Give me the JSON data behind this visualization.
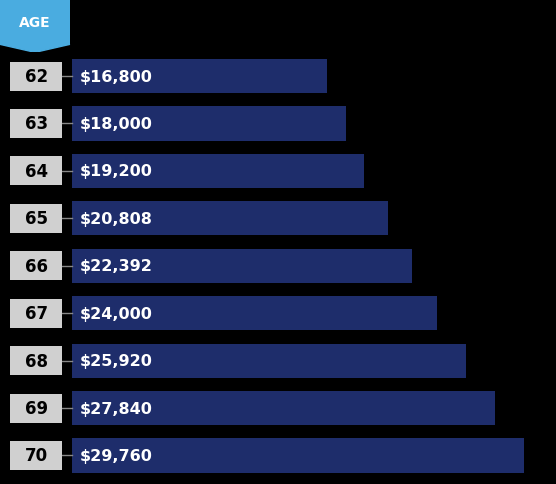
{
  "ages": [
    62,
    63,
    64,
    65,
    66,
    67,
    68,
    69,
    70
  ],
  "values": [
    16800,
    18000,
    19200,
    20808,
    22392,
    24000,
    25920,
    27840,
    29760
  ],
  "labels": [
    "$16,800",
    "$18,000",
    "$19,200",
    "$20,808",
    "$22,392",
    "$24,000",
    "$25,920",
    "$27,840",
    "$29,760"
  ],
  "bar_color": "#1e2d6b",
  "background_color": "#000000",
  "age_label_bg": "#d0d0d0",
  "age_label_color": "#000000",
  "age_header_bg": "#4aace0",
  "age_header_color": "#ffffff",
  "age_header_text": "AGE",
  "bar_text_color": "#ffffff",
  "xlim_max": 31500,
  "bar_height": 0.72,
  "label_fontsize": 11.5,
  "age_fontsize": 12,
  "header_fontsize": 10
}
